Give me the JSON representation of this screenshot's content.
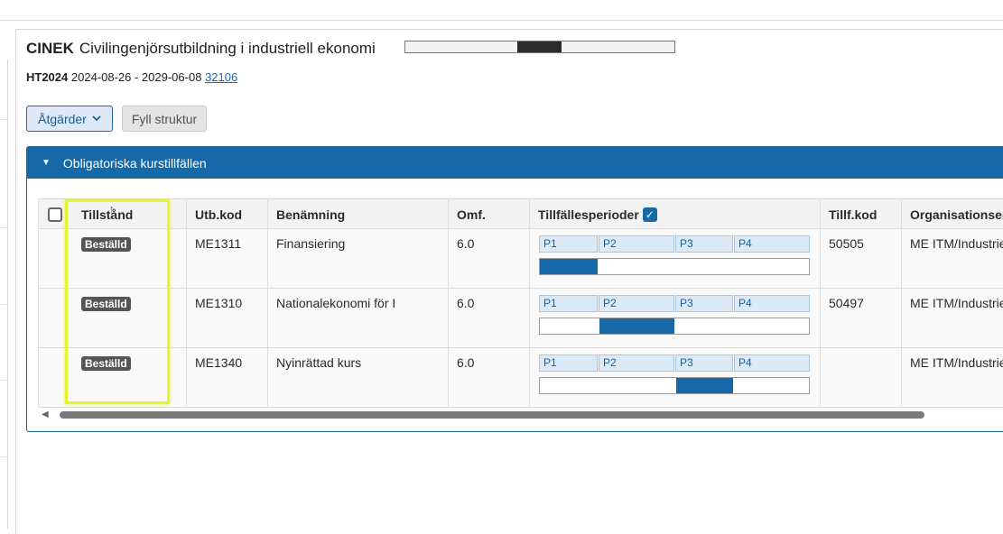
{
  "program": {
    "code": "CINEK",
    "name": "Civilingenjörsutbildning i industriell ekonomi",
    "term": "HT2024",
    "dates": "2024-08-26 - 2029-06-08",
    "link": "32106"
  },
  "toolbar": {
    "actions_label": "Åtgärder",
    "fill_label": "Fyll struktur"
  },
  "section": {
    "title": "Obligatoriska kurstillfällen"
  },
  "table": {
    "headers": [
      "Tillstånd",
      "Utb.kod",
      "Benämning",
      "Omf.",
      "Tillfällesperioder",
      "Tillf.kod",
      "Organisationser"
    ],
    "periods": [
      "P1",
      "P2",
      "P3",
      "P4"
    ],
    "rows": [
      {
        "status": "Beställd",
        "code": "ME1311",
        "name": "Finansiering",
        "credits": "6.0",
        "tillf": "50505",
        "org": "ME ITM/Industrie",
        "active_period": "P1"
      },
      {
        "status": "Beställd",
        "code": "ME1310",
        "name": "Nationalekonomi för I",
        "credits": "6.0",
        "tillf": "50497",
        "org": "ME ITM/Industrie",
        "active_period": "P2"
      },
      {
        "status": "Beställd",
        "code": "ME1340",
        "name": "Nyinrättad kurs",
        "credits": "6.0",
        "tillf": "",
        "org": "ME ITM/Industrie",
        "active_period": "P3"
      }
    ]
  },
  "colors": {
    "accent": "#1668a7",
    "highlight": "#e6f531",
    "badge": "#555555"
  }
}
